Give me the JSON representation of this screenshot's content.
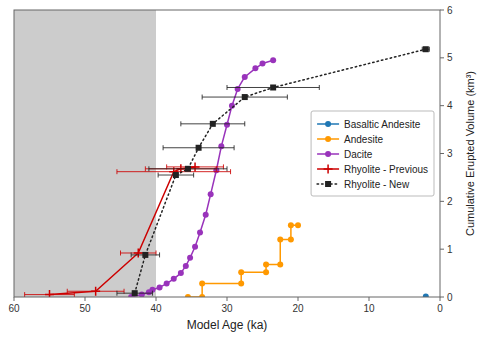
{
  "chart_data": {
    "type": "line",
    "xlabel": "Model Age (ka)",
    "ylabel": "Cumulative Erupted Volume (km³)",
    "xlim": [
      60,
      0
    ],
    "ylim": [
      0,
      6
    ],
    "xticks": [
      60,
      50,
      40,
      30,
      20,
      10,
      0
    ],
    "yticks": [
      0,
      1,
      2,
      3,
      4,
      5,
      6
    ],
    "grid": false,
    "legend": "center right",
    "shaded_region": {
      "x": [
        60,
        40
      ],
      "color": "#cccccc"
    },
    "series": [
      {
        "name": "Basaltic Andesite",
        "color": "#1f77b4",
        "marker": "circle",
        "line_style": "solid",
        "x": [
          2
        ],
        "values": [
          0.01
        ]
      },
      {
        "name": "Andesite",
        "color": "#ff9900",
        "marker": "circle",
        "line_style": "solid",
        "x": [
          35.5,
          33.5,
          33.5,
          28.0,
          28.0,
          24.5,
          24.5,
          22.5,
          22.5,
          21.0,
          21.0,
          20.0
        ],
        "values": [
          0.0,
          0.0,
          0.28,
          0.28,
          0.52,
          0.52,
          0.68,
          0.68,
          1.2,
          1.2,
          1.5,
          1.5
        ]
      },
      {
        "name": "Dacite",
        "color": "#9933bb",
        "marker": "circle",
        "line_style": "solid",
        "x": [
          43.5,
          42.0,
          41.0,
          40.5,
          39.5,
          38.5,
          37.5,
          36.5,
          35.8,
          35.2,
          34.5,
          33.8,
          33.0,
          32.3,
          31.5,
          30.8,
          30.0,
          29.3,
          28.5,
          27.5,
          26.0,
          25.0,
          23.5
        ],
        "values": [
          0.0,
          0.05,
          0.1,
          0.15,
          0.2,
          0.28,
          0.38,
          0.5,
          0.65,
          0.82,
          1.05,
          1.35,
          1.72,
          2.15,
          2.65,
          3.15,
          3.6,
          4.0,
          4.35,
          4.6,
          4.78,
          4.88,
          4.95
        ]
      },
      {
        "name": "Rhyolite - Previous",
        "color": "#cc0000",
        "marker": "plus",
        "line_style": "solid",
        "x": [
          55.0,
          48.5,
          42.5,
          37.5,
          36.5,
          34.5
        ],
        "values": [
          0.05,
          0.12,
          0.92,
          2.62,
          2.68,
          2.72
        ],
        "xerr": [
          3.5,
          4.0,
          2.5,
          8.0,
          5.0,
          4.0
        ]
      },
      {
        "name": "Rhyolite - New",
        "color": "#222222",
        "marker": "square",
        "line_style": "dotted",
        "x": [
          43.0,
          41.5,
          37.2,
          35.5,
          34.0,
          32.0,
          27.5,
          23.5,
          2.0
        ],
        "values": [
          0.08,
          0.88,
          2.55,
          2.68,
          3.12,
          3.62,
          4.18,
          4.38,
          5.18
        ],
        "xerr": [
          2.5,
          2.0,
          2.5,
          5.5,
          5.0,
          4.5,
          6.0,
          6.5,
          0.5
        ]
      }
    ]
  }
}
